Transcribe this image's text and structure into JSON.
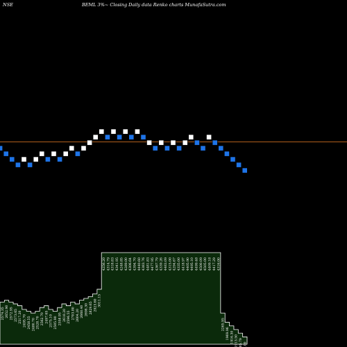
{
  "header": {
    "exchange": "NSE",
    "caption": "BEML 3%~ Closing Daily data Renko charts MunafaSutra.com"
  },
  "colors": {
    "background": "#000000",
    "up_brick": "#ffffff",
    "down_brick": "#1e74e8",
    "reference_line": "#b8621e",
    "volume_fill": "#0b2a0b",
    "volume_edge": "#ffffff"
  },
  "chart_data": {
    "type": "renko",
    "title": "BEML 3%~ Closing Daily data Renko charts",
    "xlabel": "",
    "ylabel": "",
    "grid": false,
    "reference_level": 3120,
    "bricks": [
      {
        "dir": "down",
        "level": 3060
      },
      {
        "dir": "down",
        "level": 2975
      },
      {
        "dir": "down",
        "level": 2890
      },
      {
        "dir": "down",
        "level": 2805
      },
      {
        "dir": "up",
        "level": 2890
      },
      {
        "dir": "down",
        "level": 2805
      },
      {
        "dir": "up",
        "level": 2890
      },
      {
        "dir": "up",
        "level": 2975
      },
      {
        "dir": "down",
        "level": 2890
      },
      {
        "dir": "up",
        "level": 2975
      },
      {
        "dir": "down",
        "level": 2890
      },
      {
        "dir": "up",
        "level": 2975
      },
      {
        "dir": "up",
        "level": 3060
      },
      {
        "dir": "down",
        "level": 2975
      },
      {
        "dir": "up",
        "level": 3060
      },
      {
        "dir": "up",
        "level": 3145
      },
      {
        "dir": "up",
        "level": 3230
      },
      {
        "dir": "up",
        "level": 3315
      },
      {
        "dir": "down",
        "level": 3230
      },
      {
        "dir": "up",
        "level": 3315
      },
      {
        "dir": "down",
        "level": 3230
      },
      {
        "dir": "up",
        "level": 3315
      },
      {
        "dir": "down",
        "level": 3230
      },
      {
        "dir": "up",
        "level": 3315
      },
      {
        "dir": "down",
        "level": 3230
      },
      {
        "dir": "up",
        "level": 3145
      },
      {
        "dir": "down",
        "level": 3060
      },
      {
        "dir": "up",
        "level": 3145
      },
      {
        "dir": "down",
        "level": 3060
      },
      {
        "dir": "up",
        "level": 3145
      },
      {
        "dir": "down",
        "level": 3060
      },
      {
        "dir": "up",
        "level": 3145
      },
      {
        "dir": "up",
        "level": 3230
      },
      {
        "dir": "down",
        "level": 3145
      },
      {
        "dir": "down",
        "level": 3060
      },
      {
        "dir": "up",
        "level": 3230
      },
      {
        "dir": "down",
        "level": 3145
      },
      {
        "dir": "down",
        "level": 3060
      },
      {
        "dir": "down",
        "level": 2975
      },
      {
        "dir": "down",
        "level": 2890
      },
      {
        "dir": "down",
        "level": 2805
      },
      {
        "dir": "down",
        "level": 2720
      }
    ],
    "volume_labels": [
      "2574.35",
      "2652.90",
      "2572.95",
      "2573.65",
      "2517.20",
      "2495.70",
      "2458.55",
      "2480.70",
      "2528.70",
      "2562.70",
      "2497.65",
      "2575.10",
      "2505.90",
      "2558.95",
      "2618.20",
      "2596.55",
      "2703.80",
      "2604.20",
      "2668.40",
      "2698.30",
      "2829.65",
      "2923.60",
      "3011.15",
      "4256.20",
      "4314.79",
      "4318.83",
      "4341.95",
      "4248.85",
      "4289.00",
      "4306.64",
      "4394.70",
      "4440.60",
      "4383.76",
      "4481.83",
      "4477.95",
      "4367.79",
      "4339.26",
      "4483.09",
      "4315.00",
      "4294.67",
      "4335.00",
      "4418.97",
      "4405.90",
      "4495.10",
      "4499.48",
      "4500.09",
      "4505.00",
      "4409.18",
      "4417.29",
      "4316.00",
      "2265.95",
      "1969.96",
      "1916.30",
      "1913.50",
      "1885.79",
      "1765.00"
    ],
    "volume_levels": [
      0.46,
      0.48,
      0.46,
      0.44,
      0.42,
      0.38,
      0.36,
      0.34,
      0.36,
      0.4,
      0.42,
      0.38,
      0.36,
      0.4,
      0.44,
      0.42,
      0.46,
      0.44,
      0.48,
      0.5,
      0.52,
      0.55,
      0.6,
      1.0,
      1.0,
      1.0,
      1.0,
      1.0,
      1.0,
      1.0,
      1.0,
      1.0,
      1.0,
      1.0,
      1.0,
      1.0,
      1.0,
      1.0,
      1.0,
      1.0,
      1.0,
      1.0,
      1.0,
      1.0,
      1.0,
      1.0,
      1.0,
      1.0,
      1.0,
      1.0,
      0.34,
      0.24,
      0.2,
      0.16,
      0.12,
      0.08
    ]
  }
}
